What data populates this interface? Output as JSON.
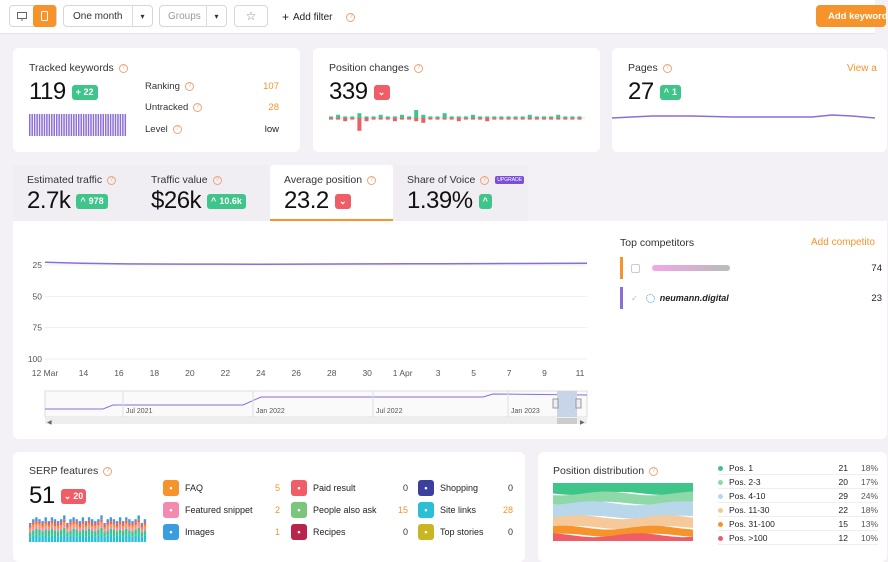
{
  "toolbar": {
    "device_desktop": "desktop-icon",
    "device_mobile": "mobile-icon",
    "period": "One month",
    "groups_placeholder": "Groups",
    "add_filter": "Add filter",
    "add_keywords": "Add keyword"
  },
  "tracked": {
    "title": "Tracked keywords",
    "value": "119",
    "change": "+ 22",
    "ranking_label": "Ranking",
    "ranking_value": "107",
    "untracked_label": "Untracked",
    "untracked_value": "28",
    "level_label": "Level",
    "level_value": "low"
  },
  "position_changes": {
    "title": "Position changes",
    "value": "339"
  },
  "pages": {
    "title": "Pages",
    "value": "27",
    "change": "1",
    "view_all": "View a"
  },
  "tabs": [
    {
      "label": "Estimated traffic",
      "value": "2.7k",
      "change": "978",
      "dir": "up"
    },
    {
      "label": "Traffic value",
      "value": "$26k",
      "change": "10.6k",
      "dir": "up"
    },
    {
      "label": "Average position",
      "value": "23.2",
      "change": "",
      "dir": "down"
    },
    {
      "label": "Share of Voice",
      "value": "1.39%",
      "change": "",
      "dir": "up",
      "tag": "UPGRADE"
    }
  ],
  "chart_data": {
    "type": "line",
    "title": "",
    "xlabel": "",
    "ylabel": "",
    "x": [
      "12 Mar",
      "14",
      "16",
      "18",
      "20",
      "22",
      "24",
      "26",
      "28",
      "30",
      "1 Apr",
      "3",
      "5",
      "7",
      "9",
      "11"
    ],
    "series": [
      {
        "name": "neumann.digital",
        "values": [
          22.8,
          23.6,
          24.0,
          24.2,
          24.3,
          24.3,
          24.4,
          24.3,
          24.2,
          24.1,
          24.0,
          24.0,
          23.9,
          23.8,
          23.7,
          23.6
        ]
      }
    ],
    "yticks": [
      "25",
      "50",
      "75",
      "100"
    ],
    "ylim": [
      100,
      20
    ],
    "reversed": true,
    "grid": true,
    "navigator_labels": [
      "Jul 2021",
      "Jan 2022",
      "Jul 2022",
      "Jan 2023"
    ]
  },
  "competitors": {
    "title": "Top competitors",
    "add": "Add competito",
    "rows": [
      {
        "name": "",
        "value": "74",
        "color": "#f7932b"
      },
      {
        "name": "neumann.digital",
        "value": "23",
        "color": "#8b6fd6"
      }
    ]
  },
  "serp": {
    "title": "SERP features",
    "value": "51",
    "change": "20",
    "items": [
      {
        "label": "FAQ",
        "count": "5",
        "color": "#f7932b",
        "icon": "faq-icon",
        "orange": true
      },
      {
        "label": "Paid result",
        "count": "0",
        "color": "#ef5d66",
        "icon": "ad-icon",
        "orange": false
      },
      {
        "label": "Shopping",
        "count": "0",
        "color": "#3c3f9e",
        "icon": "cart-icon",
        "orange": false
      },
      {
        "label": "Featured snippet",
        "count": "2",
        "color": "#f58ab0",
        "icon": "snippet-icon",
        "orange": true
      },
      {
        "label": "People also ask",
        "count": "15",
        "color": "#7bc67b",
        "icon": "people-icon",
        "orange": true
      },
      {
        "label": "Site links",
        "count": "28",
        "color": "#2bbfd6",
        "icon": "link-icon",
        "orange": true
      },
      {
        "label": "Images",
        "count": "1",
        "color": "#3a9de0",
        "icon": "image-icon",
        "orange": true
      },
      {
        "label": "Recipes",
        "count": "0",
        "color": "#b8244b",
        "icon": "recipe-icon",
        "orange": false
      },
      {
        "label": "Top stories",
        "count": "0",
        "color": "#c9b623",
        "icon": "news-icon",
        "orange": false
      }
    ]
  },
  "distribution": {
    "title": "Position distribution",
    "rows": [
      {
        "label": "Pos. 1",
        "count": "21",
        "pct": "18%",
        "color": "#3fc489"
      },
      {
        "label": "Pos. 2-3",
        "count": "20",
        "pct": "17%",
        "color": "#8fd9a8"
      },
      {
        "label": "Pos. 4-10",
        "count": "29",
        "pct": "24%",
        "color": "#b8d7ea"
      },
      {
        "label": "Pos. 11-30",
        "count": "22",
        "pct": "18%",
        "color": "#f5c99a"
      },
      {
        "label": "Pos. 31-100",
        "count": "15",
        "pct": "13%",
        "color": "#f7932b"
      },
      {
        "label": "Pos. >100",
        "count": "12",
        "pct": "10%",
        "color": "#ef5d66"
      }
    ]
  }
}
